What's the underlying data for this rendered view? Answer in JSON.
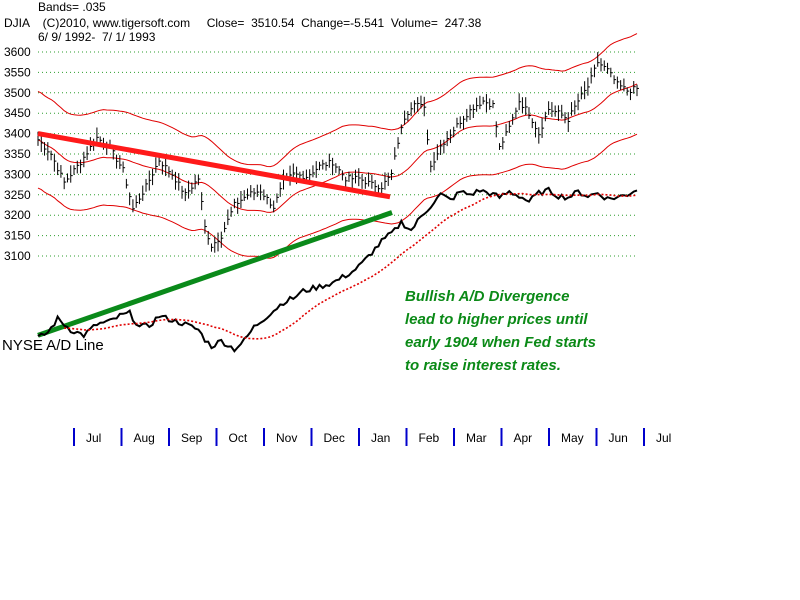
{
  "header": {
    "bands": "Bands= .035",
    "line2": "DJIA    (C)2010, www.tigersoft.com     Close=  3510.54  Change=-5.541  Volume=  247.38",
    "dates": "6/ 9/ 1992-  7/ 1/ 1993"
  },
  "colors": {
    "bars": "#000000",
    "bands": "#e00000",
    "trend_price": "#ff1a1a",
    "trend_ad": "#0a8a1a",
    "ad_line": "#000000",
    "ad_ma": "#e00000",
    "grid": "#2e9e2e",
    "months": "#0000cc",
    "note": "#0b8a17"
  },
  "chart_data": {
    "type": "line",
    "title": "DJIA",
    "ylim": [
      3090,
      3620
    ],
    "yticks": [
      3100,
      3150,
      3200,
      3250,
      3300,
      3350,
      3400,
      3450,
      3500,
      3550,
      3600
    ],
    "grid": "horizontal dotted",
    "months": [
      "Jul",
      "Aug",
      "Sep",
      "Oct",
      "Nov",
      "Dec",
      "Jan",
      "Feb",
      "Mar",
      "Apr",
      "May",
      "Jun",
      "Jul"
    ],
    "ad_label": "NYSE A/D Line",
    "price_trendline": {
      "start": 3400,
      "end": 3245
    },
    "annotation": [
      "Bullish A/D Divergence",
      "lead to higher prices until",
      "early 1904 when Fed starts",
      "to raise interest rates."
    ],
    "price_keypoints": [
      [
        0,
        3385
      ],
      [
        4,
        3350
      ],
      [
        8,
        3280
      ],
      [
        13,
        3330
      ],
      [
        18,
        3390
      ],
      [
        22,
        3365
      ],
      [
        26,
        3310
      ],
      [
        29,
        3215
      ],
      [
        33,
        3270
      ],
      [
        37,
        3335
      ],
      [
        41,
        3300
      ],
      [
        45,
        3250
      ],
      [
        49,
        3290
      ],
      [
        51,
        3170
      ],
      [
        53,
        3125
      ],
      [
        56,
        3150
      ],
      [
        60,
        3225
      ],
      [
        64,
        3250
      ],
      [
        68,
        3260
      ],
      [
        72,
        3220
      ],
      [
        75,
        3280
      ],
      [
        78,
        3300
      ],
      [
        82,
        3295
      ],
      [
        86,
        3320
      ],
      [
        90,
        3330
      ],
      [
        94,
        3290
      ],
      [
        98,
        3290
      ],
      [
        102,
        3275
      ],
      [
        105,
        3270
      ],
      [
        108,
        3300
      ],
      [
        110,
        3380
      ],
      [
        112,
        3440
      ],
      [
        115,
        3480
      ],
      [
        118,
        3460
      ],
      [
        120,
        3320
      ],
      [
        123,
        3370
      ],
      [
        126,
        3400
      ],
      [
        130,
        3440
      ],
      [
        133,
        3465
      ],
      [
        136,
        3480
      ],
      [
        139,
        3470
      ],
      [
        141,
        3365
      ],
      [
        144,
        3415
      ],
      [
        147,
        3480
      ],
      [
        150,
        3450
      ],
      [
        153,
        3400
      ],
      [
        156,
        3460
      ],
      [
        159,
        3450
      ],
      [
        162,
        3435
      ],
      [
        165,
        3480
      ],
      [
        168,
        3515
      ],
      [
        171,
        3575
      ],
      [
        174,
        3555
      ],
      [
        177,
        3520
      ],
      [
        180,
        3505
      ],
      [
        183,
        3510
      ]
    ],
    "ad_keypoints": [
      [
        0,
        34
      ],
      [
        3,
        38
      ],
      [
        6,
        48
      ],
      [
        10,
        40
      ],
      [
        14,
        36
      ],
      [
        18,
        44
      ],
      [
        22,
        46
      ],
      [
        25,
        50
      ],
      [
        28,
        52
      ],
      [
        31,
        42
      ],
      [
        34,
        43
      ],
      [
        37,
        50
      ],
      [
        41,
        47
      ],
      [
        45,
        44
      ],
      [
        49,
        40
      ],
      [
        51,
        33
      ],
      [
        53,
        28
      ],
      [
        56,
        32
      ],
      [
        60,
        26
      ],
      [
        63,
        32
      ],
      [
        66,
        42
      ],
      [
        69,
        48
      ],
      [
        72,
        54
      ],
      [
        75,
        60
      ],
      [
        78,
        63
      ],
      [
        81,
        68
      ],
      [
        84,
        70
      ],
      [
        87,
        72
      ],
      [
        90,
        74
      ],
      [
        93,
        78
      ],
      [
        96,
        82
      ],
      [
        99,
        88
      ],
      [
        102,
        96
      ],
      [
        105,
        104
      ],
      [
        107,
        108
      ],
      [
        109,
        112
      ],
      [
        111,
        118
      ],
      [
        114,
        112
      ],
      [
        117,
        122
      ],
      [
        120,
        130
      ],
      [
        123,
        138
      ],
      [
        126,
        134
      ],
      [
        129,
        140
      ],
      [
        132,
        138
      ],
      [
        135,
        141
      ],
      [
        138,
        139
      ],
      [
        141,
        136
      ],
      [
        144,
        140
      ],
      [
        147,
        137
      ],
      [
        150,
        133
      ],
      [
        153,
        139
      ],
      [
        156,
        141
      ],
      [
        159,
        137
      ],
      [
        162,
        136
      ],
      [
        165,
        140
      ],
      [
        168,
        137
      ],
      [
        171,
        139
      ],
      [
        174,
        135
      ],
      [
        177,
        136
      ],
      [
        180,
        138
      ],
      [
        183,
        142
      ]
    ],
    "ad_trendline": {
      "start": 36,
      "end": 125
    }
  }
}
